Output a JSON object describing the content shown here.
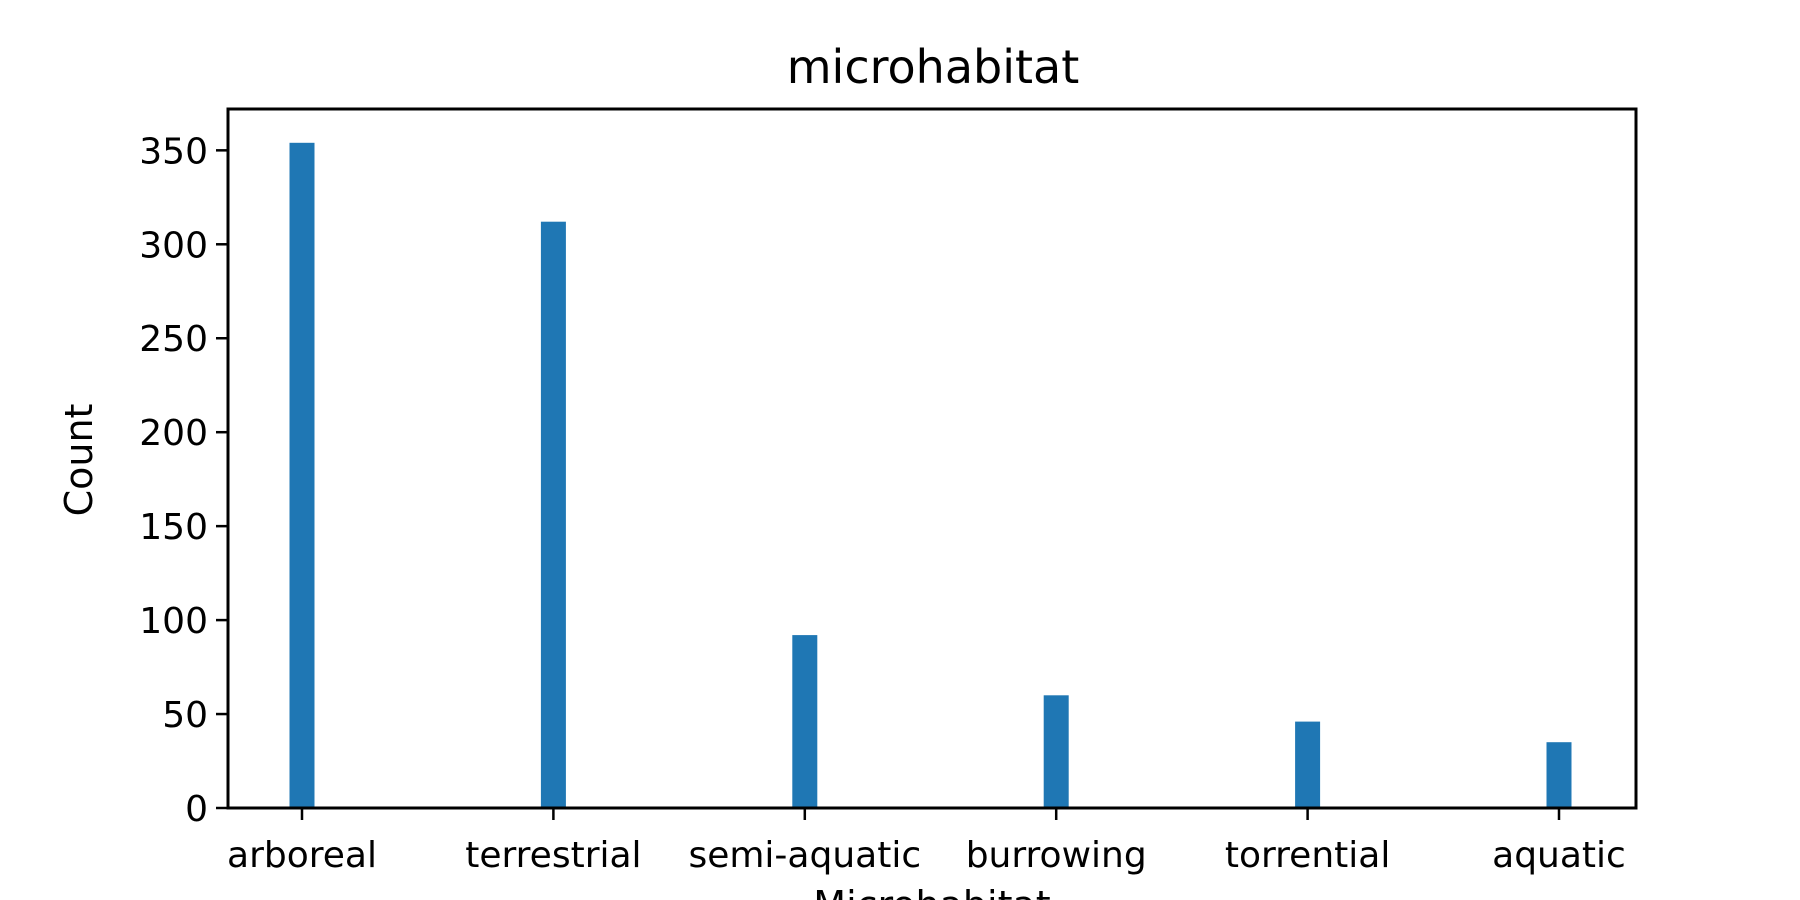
{
  "chart_data": {
    "type": "bar",
    "title": "microhabitat",
    "xlabel": "Microhabitat",
    "ylabel": "Count",
    "categories": [
      "arboreal",
      "terrestrial",
      "semi-aquatic",
      "burrowing",
      "torrential",
      "aquatic"
    ],
    "values": [
      354,
      312,
      92,
      60,
      46,
      35
    ],
    "ylim": [
      0,
      372
    ],
    "yticks": [
      0,
      50,
      100,
      150,
      200,
      250,
      300,
      350
    ],
    "grid": false,
    "bar_color": "#1f77b4"
  }
}
